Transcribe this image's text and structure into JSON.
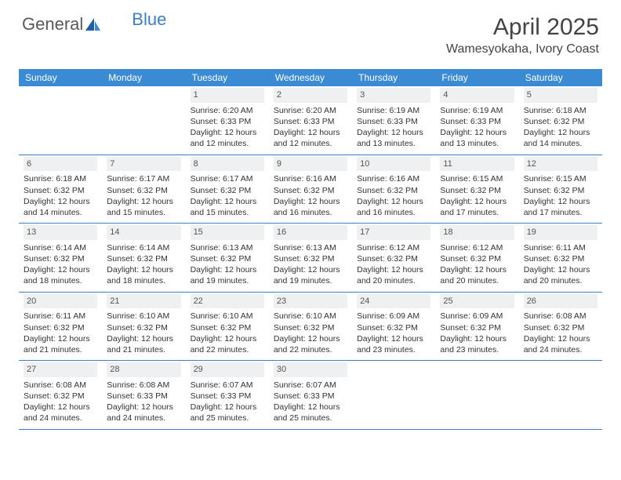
{
  "brand": {
    "part1": "General",
    "part2": "Blue"
  },
  "title": "April 2025",
  "location": "Wamesyokaha, Ivory Coast",
  "colors": {
    "header_bg": "#3b8bd4",
    "divider": "#3b7fc4",
    "daynum_bg": "#eef0f2",
    "text": "#333333",
    "title_text": "#444444"
  },
  "dayNames": [
    "Sunday",
    "Monday",
    "Tuesday",
    "Wednesday",
    "Thursday",
    "Friday",
    "Saturday"
  ],
  "weeks": [
    [
      {
        "n": "",
        "sr": "",
        "ss": "",
        "dl1": "",
        "dl2": ""
      },
      {
        "n": "",
        "sr": "",
        "ss": "",
        "dl1": "",
        "dl2": ""
      },
      {
        "n": "1",
        "sr": "Sunrise: 6:20 AM",
        "ss": "Sunset: 6:33 PM",
        "dl1": "Daylight: 12 hours",
        "dl2": "and 12 minutes."
      },
      {
        "n": "2",
        "sr": "Sunrise: 6:20 AM",
        "ss": "Sunset: 6:33 PM",
        "dl1": "Daylight: 12 hours",
        "dl2": "and 12 minutes."
      },
      {
        "n": "3",
        "sr": "Sunrise: 6:19 AM",
        "ss": "Sunset: 6:33 PM",
        "dl1": "Daylight: 12 hours",
        "dl2": "and 13 minutes."
      },
      {
        "n": "4",
        "sr": "Sunrise: 6:19 AM",
        "ss": "Sunset: 6:33 PM",
        "dl1": "Daylight: 12 hours",
        "dl2": "and 13 minutes."
      },
      {
        "n": "5",
        "sr": "Sunrise: 6:18 AM",
        "ss": "Sunset: 6:32 PM",
        "dl1": "Daylight: 12 hours",
        "dl2": "and 14 minutes."
      }
    ],
    [
      {
        "n": "6",
        "sr": "Sunrise: 6:18 AM",
        "ss": "Sunset: 6:32 PM",
        "dl1": "Daylight: 12 hours",
        "dl2": "and 14 minutes."
      },
      {
        "n": "7",
        "sr": "Sunrise: 6:17 AM",
        "ss": "Sunset: 6:32 PM",
        "dl1": "Daylight: 12 hours",
        "dl2": "and 15 minutes."
      },
      {
        "n": "8",
        "sr": "Sunrise: 6:17 AM",
        "ss": "Sunset: 6:32 PM",
        "dl1": "Daylight: 12 hours",
        "dl2": "and 15 minutes."
      },
      {
        "n": "9",
        "sr": "Sunrise: 6:16 AM",
        "ss": "Sunset: 6:32 PM",
        "dl1": "Daylight: 12 hours",
        "dl2": "and 16 minutes."
      },
      {
        "n": "10",
        "sr": "Sunrise: 6:16 AM",
        "ss": "Sunset: 6:32 PM",
        "dl1": "Daylight: 12 hours",
        "dl2": "and 16 minutes."
      },
      {
        "n": "11",
        "sr": "Sunrise: 6:15 AM",
        "ss": "Sunset: 6:32 PM",
        "dl1": "Daylight: 12 hours",
        "dl2": "and 17 minutes."
      },
      {
        "n": "12",
        "sr": "Sunrise: 6:15 AM",
        "ss": "Sunset: 6:32 PM",
        "dl1": "Daylight: 12 hours",
        "dl2": "and 17 minutes."
      }
    ],
    [
      {
        "n": "13",
        "sr": "Sunrise: 6:14 AM",
        "ss": "Sunset: 6:32 PM",
        "dl1": "Daylight: 12 hours",
        "dl2": "and 18 minutes."
      },
      {
        "n": "14",
        "sr": "Sunrise: 6:14 AM",
        "ss": "Sunset: 6:32 PM",
        "dl1": "Daylight: 12 hours",
        "dl2": "and 18 minutes."
      },
      {
        "n": "15",
        "sr": "Sunrise: 6:13 AM",
        "ss": "Sunset: 6:32 PM",
        "dl1": "Daylight: 12 hours",
        "dl2": "and 19 minutes."
      },
      {
        "n": "16",
        "sr": "Sunrise: 6:13 AM",
        "ss": "Sunset: 6:32 PM",
        "dl1": "Daylight: 12 hours",
        "dl2": "and 19 minutes."
      },
      {
        "n": "17",
        "sr": "Sunrise: 6:12 AM",
        "ss": "Sunset: 6:32 PM",
        "dl1": "Daylight: 12 hours",
        "dl2": "and 20 minutes."
      },
      {
        "n": "18",
        "sr": "Sunrise: 6:12 AM",
        "ss": "Sunset: 6:32 PM",
        "dl1": "Daylight: 12 hours",
        "dl2": "and 20 minutes."
      },
      {
        "n": "19",
        "sr": "Sunrise: 6:11 AM",
        "ss": "Sunset: 6:32 PM",
        "dl1": "Daylight: 12 hours",
        "dl2": "and 20 minutes."
      }
    ],
    [
      {
        "n": "20",
        "sr": "Sunrise: 6:11 AM",
        "ss": "Sunset: 6:32 PM",
        "dl1": "Daylight: 12 hours",
        "dl2": "and 21 minutes."
      },
      {
        "n": "21",
        "sr": "Sunrise: 6:10 AM",
        "ss": "Sunset: 6:32 PM",
        "dl1": "Daylight: 12 hours",
        "dl2": "and 21 minutes."
      },
      {
        "n": "22",
        "sr": "Sunrise: 6:10 AM",
        "ss": "Sunset: 6:32 PM",
        "dl1": "Daylight: 12 hours",
        "dl2": "and 22 minutes."
      },
      {
        "n": "23",
        "sr": "Sunrise: 6:10 AM",
        "ss": "Sunset: 6:32 PM",
        "dl1": "Daylight: 12 hours",
        "dl2": "and 22 minutes."
      },
      {
        "n": "24",
        "sr": "Sunrise: 6:09 AM",
        "ss": "Sunset: 6:32 PM",
        "dl1": "Daylight: 12 hours",
        "dl2": "and 23 minutes."
      },
      {
        "n": "25",
        "sr": "Sunrise: 6:09 AM",
        "ss": "Sunset: 6:32 PM",
        "dl1": "Daylight: 12 hours",
        "dl2": "and 23 minutes."
      },
      {
        "n": "26",
        "sr": "Sunrise: 6:08 AM",
        "ss": "Sunset: 6:32 PM",
        "dl1": "Daylight: 12 hours",
        "dl2": "and 24 minutes."
      }
    ],
    [
      {
        "n": "27",
        "sr": "Sunrise: 6:08 AM",
        "ss": "Sunset: 6:32 PM",
        "dl1": "Daylight: 12 hours",
        "dl2": "and 24 minutes."
      },
      {
        "n": "28",
        "sr": "Sunrise: 6:08 AM",
        "ss": "Sunset: 6:33 PM",
        "dl1": "Daylight: 12 hours",
        "dl2": "and 24 minutes."
      },
      {
        "n": "29",
        "sr": "Sunrise: 6:07 AM",
        "ss": "Sunset: 6:33 PM",
        "dl1": "Daylight: 12 hours",
        "dl2": "and 25 minutes."
      },
      {
        "n": "30",
        "sr": "Sunrise: 6:07 AM",
        "ss": "Sunset: 6:33 PM",
        "dl1": "Daylight: 12 hours",
        "dl2": "and 25 minutes."
      },
      {
        "n": "",
        "sr": "",
        "ss": "",
        "dl1": "",
        "dl2": ""
      },
      {
        "n": "",
        "sr": "",
        "ss": "",
        "dl1": "",
        "dl2": ""
      },
      {
        "n": "",
        "sr": "",
        "ss": "",
        "dl1": "",
        "dl2": ""
      }
    ]
  ]
}
